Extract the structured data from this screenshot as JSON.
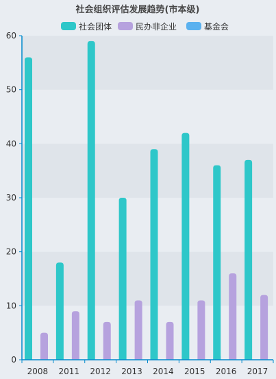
{
  "chart_data": {
    "type": "bar",
    "title": "社会组织评估发展趋势(市本级)",
    "categories": [
      "2008",
      "2011",
      "2012",
      "2013",
      "2014",
      "2015",
      "2016",
      "2017"
    ],
    "series": [
      {
        "name": "社会团体",
        "color": "#2ec7c9",
        "values": [
          56,
          18,
          59,
          30,
          39,
          42,
          36,
          37
        ]
      },
      {
        "name": "民办非企业",
        "color": "#b6a2de",
        "values": [
          5,
          9,
          7,
          11,
          7,
          11,
          16,
          12
        ]
      },
      {
        "name": "基金会",
        "color": "#5ab1ef",
        "values": [
          0,
          0,
          0,
          0,
          0,
          1,
          0,
          2
        ]
      }
    ],
    "xlabel": "",
    "ylabel": "",
    "ylim": [
      0,
      60
    ],
    "yticks": [
      0,
      10,
      20,
      30,
      40,
      50,
      60
    ],
    "grid": true,
    "legend_position": "top-center",
    "colors": {
      "axis": "#008acd",
      "band_dark": "#dfe4ea",
      "band_light": "#e9edf2"
    }
  }
}
